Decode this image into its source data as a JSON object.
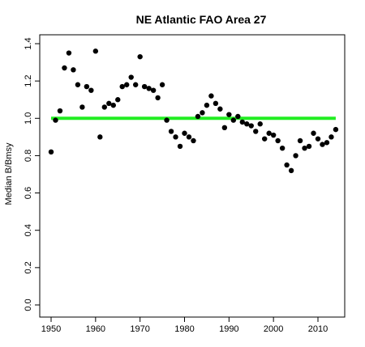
{
  "chart_data": {
    "type": "scatter",
    "title": "NE Atlantic FAO Area 27",
    "xlabel": "",
    "ylabel": "Median B/Bmsy",
    "xlim": [
      1950,
      2014
    ],
    "ylim": [
      0.0,
      1.4
    ],
    "x_ticks": [
      "1950",
      "1960",
      "1970",
      "1980",
      "1990",
      "2000",
      "2010"
    ],
    "y_ticks": [
      "0.0",
      "0.2",
      "0.4",
      "0.6",
      "0.8",
      "1.0",
      "1.2",
      "1.4"
    ],
    "grid": false,
    "reference_line": {
      "y": 1.0,
      "color": "#22ee22"
    },
    "point_color": "#000000",
    "series": [
      {
        "x": [
          1950,
          1951,
          1952,
          1953,
          1954,
          1955,
          1956,
          1957,
          1958,
          1959,
          1960,
          1961,
          1962,
          1963,
          1964,
          1965,
          1966,
          1967,
          1968,
          1969,
          1970,
          1971,
          1972,
          1973,
          1974,
          1975,
          1976,
          1977,
          1978,
          1979,
          1980,
          1981,
          1982,
          1983,
          1984,
          1985,
          1986,
          1987,
          1988,
          1989,
          1990,
          1991,
          1992,
          1993,
          1994,
          1995,
          1996,
          1997,
          1998,
          1999,
          2000,
          2001,
          2002,
          2003,
          2004,
          2005,
          2006,
          2007,
          2008,
          2009,
          2010,
          2011,
          2012,
          2013,
          2014
        ],
        "values": [
          0.82,
          0.99,
          1.04,
          1.27,
          1.35,
          1.26,
          1.18,
          1.06,
          1.17,
          1.15,
          1.36,
          0.9,
          1.06,
          1.08,
          1.07,
          1.1,
          1.17,
          1.18,
          1.22,
          1.18,
          1.33,
          1.17,
          1.16,
          1.15,
          1.11,
          1.18,
          0.99,
          0.93,
          0.9,
          0.85,
          0.92,
          0.9,
          0.88,
          1.01,
          1.03,
          1.07,
          1.12,
          1.08,
          1.05,
          0.95,
          1.02,
          0.99,
          1.01,
          0.98,
          0.97,
          0.96,
          0.93,
          0.97,
          0.89,
          0.92,
          0.91,
          0.88,
          0.84,
          0.75,
          0.72,
          0.8,
          0.88,
          0.84,
          0.85,
          0.92,
          0.89,
          0.86,
          0.87,
          0.9,
          0.94
        ]
      }
    ]
  }
}
